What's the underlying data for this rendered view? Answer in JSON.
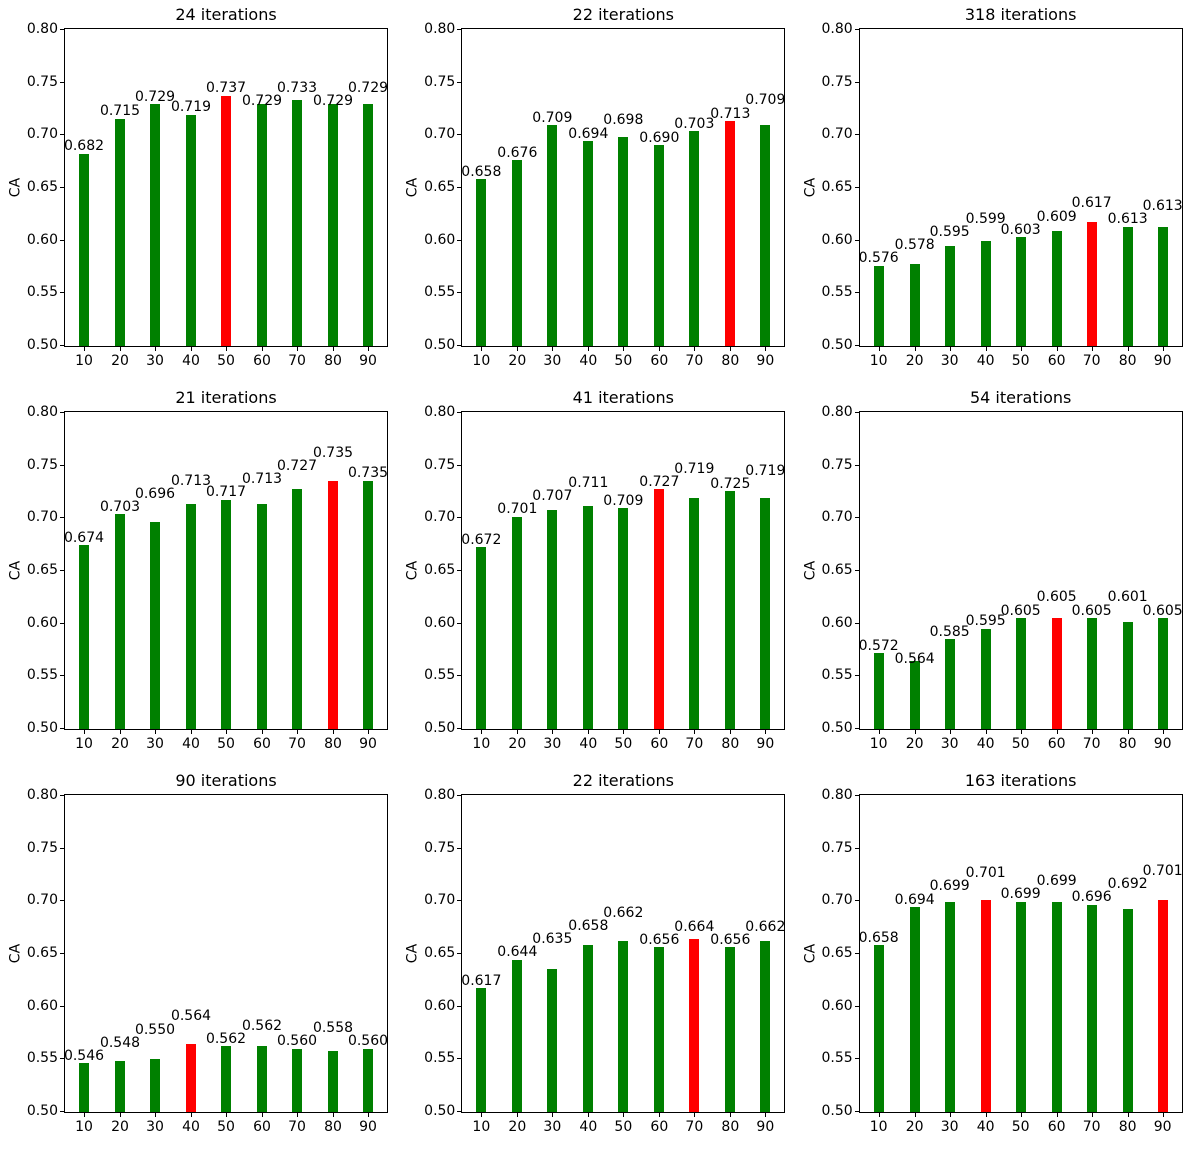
{
  "figure": {
    "background": "#ffffff",
    "bar_color": "#008000",
    "highlight_color": "#ff0000",
    "axis_color": "#000000",
    "text_color": "#000000",
    "value_label_decimals": 3
  },
  "chart_data": [
    {
      "type": "bar",
      "title": "24 iterations",
      "ylabel": "CA",
      "categories": [
        10,
        20,
        30,
        40,
        50,
        60,
        70,
        80,
        90
      ],
      "values": [
        0.682,
        0.715,
        0.729,
        0.719,
        0.737,
        0.729,
        0.733,
        0.729,
        0.729
      ],
      "highlight_indices": [
        4
      ],
      "ylim": [
        0.5,
        0.8
      ],
      "yticks": [
        0.5,
        0.55,
        0.6,
        0.65,
        0.7,
        0.75,
        0.8
      ],
      "grid": false,
      "legend": false
    },
    {
      "type": "bar",
      "title": "22 iterations",
      "ylabel": "CA",
      "categories": [
        10,
        20,
        30,
        40,
        50,
        60,
        70,
        80,
        90
      ],
      "values": [
        0.658,
        0.676,
        0.709,
        0.694,
        0.698,
        0.69,
        0.703,
        0.713,
        0.709
      ],
      "highlight_indices": [
        7
      ],
      "ylim": [
        0.5,
        0.8
      ],
      "yticks": [
        0.5,
        0.55,
        0.6,
        0.65,
        0.7,
        0.75,
        0.8
      ],
      "grid": false,
      "legend": false
    },
    {
      "type": "bar",
      "title": "318 iterations",
      "ylabel": "CA",
      "categories": [
        10,
        20,
        30,
        40,
        50,
        60,
        70,
        80,
        90
      ],
      "values": [
        0.576,
        0.578,
        0.595,
        0.599,
        0.603,
        0.609,
        0.617,
        0.613,
        0.613
      ],
      "highlight_indices": [
        6
      ],
      "ylim": [
        0.5,
        0.8
      ],
      "yticks": [
        0.5,
        0.55,
        0.6,
        0.65,
        0.7,
        0.75,
        0.8
      ],
      "grid": false,
      "legend": false
    },
    {
      "type": "bar",
      "title": "21 iterations",
      "ylabel": "CA",
      "categories": [
        10,
        20,
        30,
        40,
        50,
        60,
        70,
        80,
        90
      ],
      "values": [
        0.674,
        0.703,
        0.696,
        0.713,
        0.717,
        0.713,
        0.727,
        0.735,
        0.735
      ],
      "highlight_indices": [
        7
      ],
      "ylim": [
        0.5,
        0.8
      ],
      "yticks": [
        0.5,
        0.55,
        0.6,
        0.65,
        0.7,
        0.75,
        0.8
      ],
      "grid": false,
      "legend": false
    },
    {
      "type": "bar",
      "title": "41 iterations",
      "ylabel": "CA",
      "categories": [
        10,
        20,
        30,
        40,
        50,
        60,
        70,
        80,
        90
      ],
      "values": [
        0.672,
        0.701,
        0.707,
        0.711,
        0.709,
        0.727,
        0.719,
        0.725,
        0.719
      ],
      "highlight_indices": [
        5
      ],
      "ylim": [
        0.5,
        0.8
      ],
      "yticks": [
        0.5,
        0.55,
        0.6,
        0.65,
        0.7,
        0.75,
        0.8
      ],
      "grid": false,
      "legend": false
    },
    {
      "type": "bar",
      "title": "54 iterations",
      "ylabel": "CA",
      "categories": [
        10,
        20,
        30,
        40,
        50,
        60,
        70,
        80,
        90
      ],
      "values": [
        0.572,
        0.564,
        0.585,
        0.595,
        0.605,
        0.605,
        0.605,
        0.601,
        0.605
      ],
      "highlight_indices": [
        5
      ],
      "ylim": [
        0.5,
        0.8
      ],
      "yticks": [
        0.5,
        0.55,
        0.6,
        0.65,
        0.7,
        0.75,
        0.8
      ],
      "grid": false,
      "legend": false
    },
    {
      "type": "bar",
      "title": "90 iterations",
      "ylabel": "CA",
      "categories": [
        10,
        20,
        30,
        40,
        50,
        60,
        70,
        80,
        90
      ],
      "values": [
        0.546,
        0.548,
        0.55,
        0.564,
        0.562,
        0.562,
        0.56,
        0.558,
        0.56
      ],
      "highlight_indices": [
        3
      ],
      "ylim": [
        0.5,
        0.8
      ],
      "yticks": [
        0.5,
        0.55,
        0.6,
        0.65,
        0.7,
        0.75,
        0.8
      ],
      "grid": false,
      "legend": false
    },
    {
      "type": "bar",
      "title": "22 iterations",
      "ylabel": "CA",
      "categories": [
        10,
        20,
        30,
        40,
        50,
        60,
        70,
        80,
        90
      ],
      "values": [
        0.617,
        0.644,
        0.635,
        0.658,
        0.662,
        0.656,
        0.664,
        0.656,
        0.662
      ],
      "highlight_indices": [
        6
      ],
      "ylim": [
        0.5,
        0.8
      ],
      "yticks": [
        0.5,
        0.55,
        0.6,
        0.65,
        0.7,
        0.75,
        0.8
      ],
      "grid": false,
      "legend": false
    },
    {
      "type": "bar",
      "title": "163 iterations",
      "ylabel": "CA",
      "categories": [
        10,
        20,
        30,
        40,
        50,
        60,
        70,
        80,
        90
      ],
      "values": [
        0.658,
        0.694,
        0.699,
        0.701,
        0.699,
        0.699,
        0.696,
        0.692,
        0.701
      ],
      "highlight_indices": [
        3,
        8
      ],
      "ylim": [
        0.5,
        0.8
      ],
      "yticks": [
        0.5,
        0.55,
        0.6,
        0.65,
        0.7,
        0.75,
        0.8
      ],
      "grid": false,
      "legend": false
    }
  ]
}
